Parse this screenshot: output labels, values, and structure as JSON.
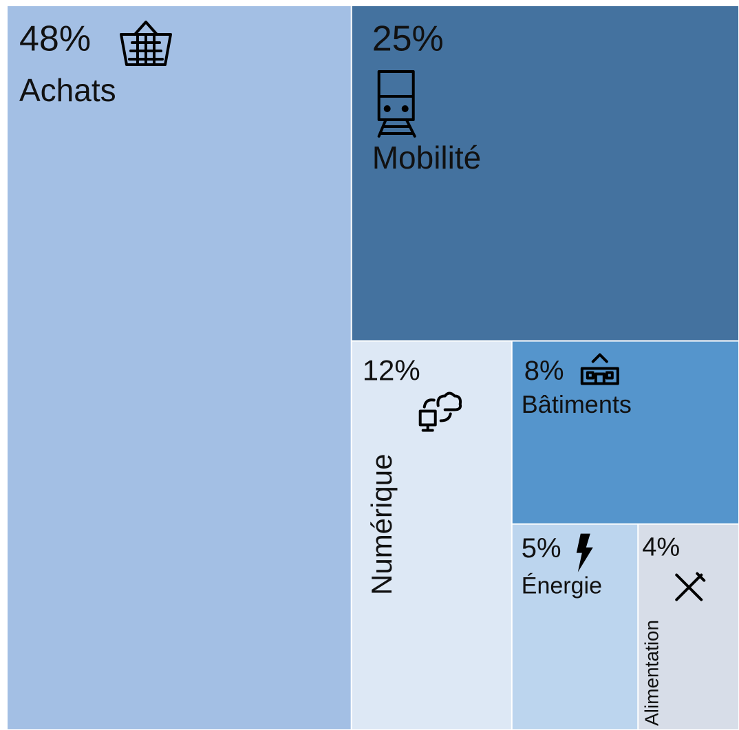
{
  "chart_data": {
    "type": "treemap",
    "categories": [
      "Achats",
      "Mobilité",
      "Numérique",
      "Bâtiments",
      "Énergie",
      "Alimentation"
    ],
    "values": [
      48,
      25,
      12,
      8,
      5,
      4
    ],
    "value_labels": [
      "48%",
      "25%",
      "12%",
      "8%",
      "5%",
      "4%"
    ],
    "colors": [
      "#a3bfe4",
      "#44729f",
      "#dde8f5",
      "#5595cc",
      "#bcd5ee",
      "#d7dde8"
    ]
  }
}
